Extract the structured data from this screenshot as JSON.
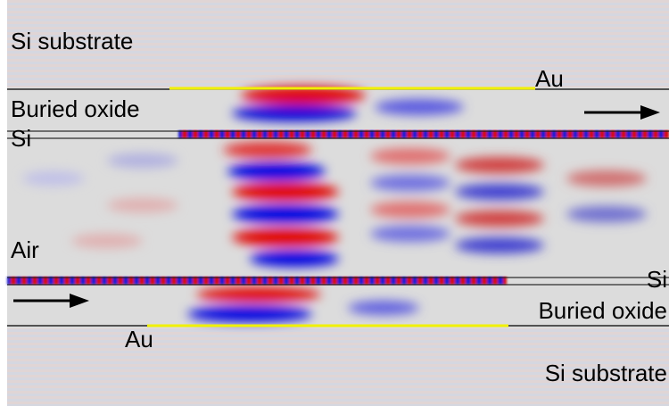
{
  "labels": [
    "Si substrate",
    "Au",
    "Buried oxide",
    "Si",
    "Air",
    "Si",
    "Buried oxide",
    "Au",
    "Si substrate"
  ]
}
